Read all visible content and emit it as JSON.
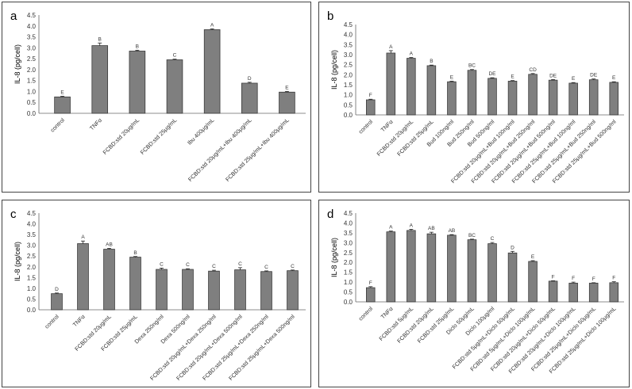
{
  "chart_data": [
    {
      "id": "a",
      "type": "bar",
      "panel_label": "a",
      "ylabel": "IL-8  (pg/cell)",
      "ylim": [
        0,
        4.5
      ],
      "yticks": [
        "0.0",
        "0.5",
        "1.0",
        "1.5",
        "2.0",
        "2.5",
        "3.0",
        "3.5",
        "4.0",
        "4.5"
      ],
      "categories": [
        "control",
        "TNFα",
        "FCBD:std 20μg/mL",
        "FCBD:std 25μg/mL",
        "Ibu 400μg/mL",
        "FCBD:std 20μg/mL+Ibu 400μg/mL",
        "FCBD:std 25μg/mL+Ibu 400μg/mL"
      ],
      "values": [
        0.75,
        3.1,
        2.85,
        2.45,
        3.83,
        1.38,
        0.97
      ],
      "errors": [
        0.03,
        0.12,
        0.04,
        0.03,
        0.04,
        0.04,
        0.03
      ],
      "significance": [
        "E",
        "B",
        "B",
        "C",
        "A",
        "D",
        "E"
      ]
    },
    {
      "id": "b",
      "type": "bar",
      "panel_label": "b",
      "ylabel": "IL-8  (pg/cell)",
      "ylim": [
        0,
        4.5
      ],
      "yticks": [
        "0.0",
        "0.5",
        "1.0",
        "1.5",
        "2.0",
        "2.5",
        "3.0",
        "3.5",
        "4.0",
        "4.5"
      ],
      "categories": [
        "control",
        "TNFα",
        "FCBD:std 20μg/mL",
        "FCBD:std 25μg/mL",
        "Bud 100ng/ml",
        "Bud 250ng/ml",
        "Bud 500ng/ml",
        "FCBD:std 20μg/mL+Bud 100ng/ml",
        "FCBD:std 20μg/mL+Bud 250ng/ml",
        "FCBD:std 20μg/mL+Bud 500ng/ml",
        "FCBD:std 25μg/mL+Bud 100ng/ml",
        "FCBD:std 25μg/mL+Bud 250ng/ml",
        "FCBD:std 25μg/mL+Bud 500ng/ml"
      ],
      "values": [
        0.75,
        3.08,
        2.82,
        2.45,
        1.65,
        2.22,
        1.82,
        1.68,
        2.02,
        1.73,
        1.58,
        1.75,
        1.62
      ],
      "errors": [
        0.03,
        0.12,
        0.04,
        0.03,
        0.03,
        0.04,
        0.03,
        0.03,
        0.04,
        0.03,
        0.03,
        0.04,
        0.03
      ],
      "significance": [
        "F",
        "A",
        "A",
        "B",
        "E",
        "BC",
        "DE",
        "E",
        "CD",
        "DE",
        "E",
        "DE",
        "E"
      ]
    },
    {
      "id": "c",
      "type": "bar",
      "panel_label": "c",
      "ylabel": "IL-8  (pg/cell)",
      "ylim": [
        0,
        4.5
      ],
      "yticks": [
        "0.0",
        "0.5",
        "1.0",
        "1.5",
        "2.0",
        "2.5",
        "3.0",
        "3.5",
        "4.0",
        "4.5"
      ],
      "categories": [
        "control",
        "TNFα",
        "FCBD:std 20μg/mL",
        "FCBD:std 25μg/mL",
        "Dexa 250ng/ml",
        "Dexa 500ng/ml",
        "FCBD:std 20μg/mL+Dexa 250ng/ml",
        "FCBD:std 20μg/mL+Dexa 500ng/ml",
        "FCBD:std 25μg/mL+Dexa 250ng/ml",
        "FCBD:std 25μg/mL+Dexa 500ng/ml"
      ],
      "values": [
        0.75,
        3.08,
        2.82,
        2.45,
        1.88,
        1.88,
        1.8,
        1.86,
        1.78,
        1.82
      ],
      "errors": [
        0.03,
        0.12,
        0.04,
        0.03,
        0.06,
        0.03,
        0.04,
        0.1,
        0.03,
        0.03
      ],
      "significance": [
        "D",
        "A",
        "AB",
        "B",
        "C",
        "C",
        "C",
        "C",
        "C",
        "C"
      ]
    },
    {
      "id": "d",
      "type": "bar",
      "panel_label": "d",
      "ylabel": "IL-8  (pg/cell)",
      "ylim": [
        0,
        4.5
      ],
      "yticks": [
        "0.0",
        "0.5",
        "1.0",
        "1.5",
        "2.0",
        "2.5",
        "3.0",
        "3.5",
        "4.0",
        "4.5"
      ],
      "categories": [
        "control",
        "TNFα",
        "FCBD:std 5μg/mL",
        "FCBD:std 20μg/mL",
        "FCBD:std 25μg/mL",
        "Diclo 50μg/mL",
        "Diclo 100μg/ml",
        "FCBD:std 5μg/mL+Diclo 50μg/mL",
        "FCBD:std 5μg/mL+Diclo 100μg/mL",
        "FCBD:std 20μg/mL+Diclo 50μg/mL",
        "FCBD:std 20μg/mL+Diclo 100μg/mL",
        "FCBD:std 25μg/mL+Diclo 50μg/mL",
        "FCBD:std 25μg/mL+Diclo 100μg/mL"
      ],
      "values": [
        0.72,
        3.55,
        3.62,
        3.45,
        3.38,
        3.15,
        2.95,
        2.48,
        2.05,
        1.05,
        0.95,
        0.95,
        0.97
      ],
      "errors": [
        0.05,
        0.04,
        0.06,
        0.08,
        0.03,
        0.03,
        0.06,
        0.08,
        0.04,
        0.02,
        0.05,
        0.02,
        0.05
      ],
      "significance": [
        "F",
        "A",
        "A",
        "AB",
        "AB",
        "BC",
        "C",
        "D",
        "E",
        "F",
        "F",
        "F",
        "F"
      ]
    }
  ]
}
